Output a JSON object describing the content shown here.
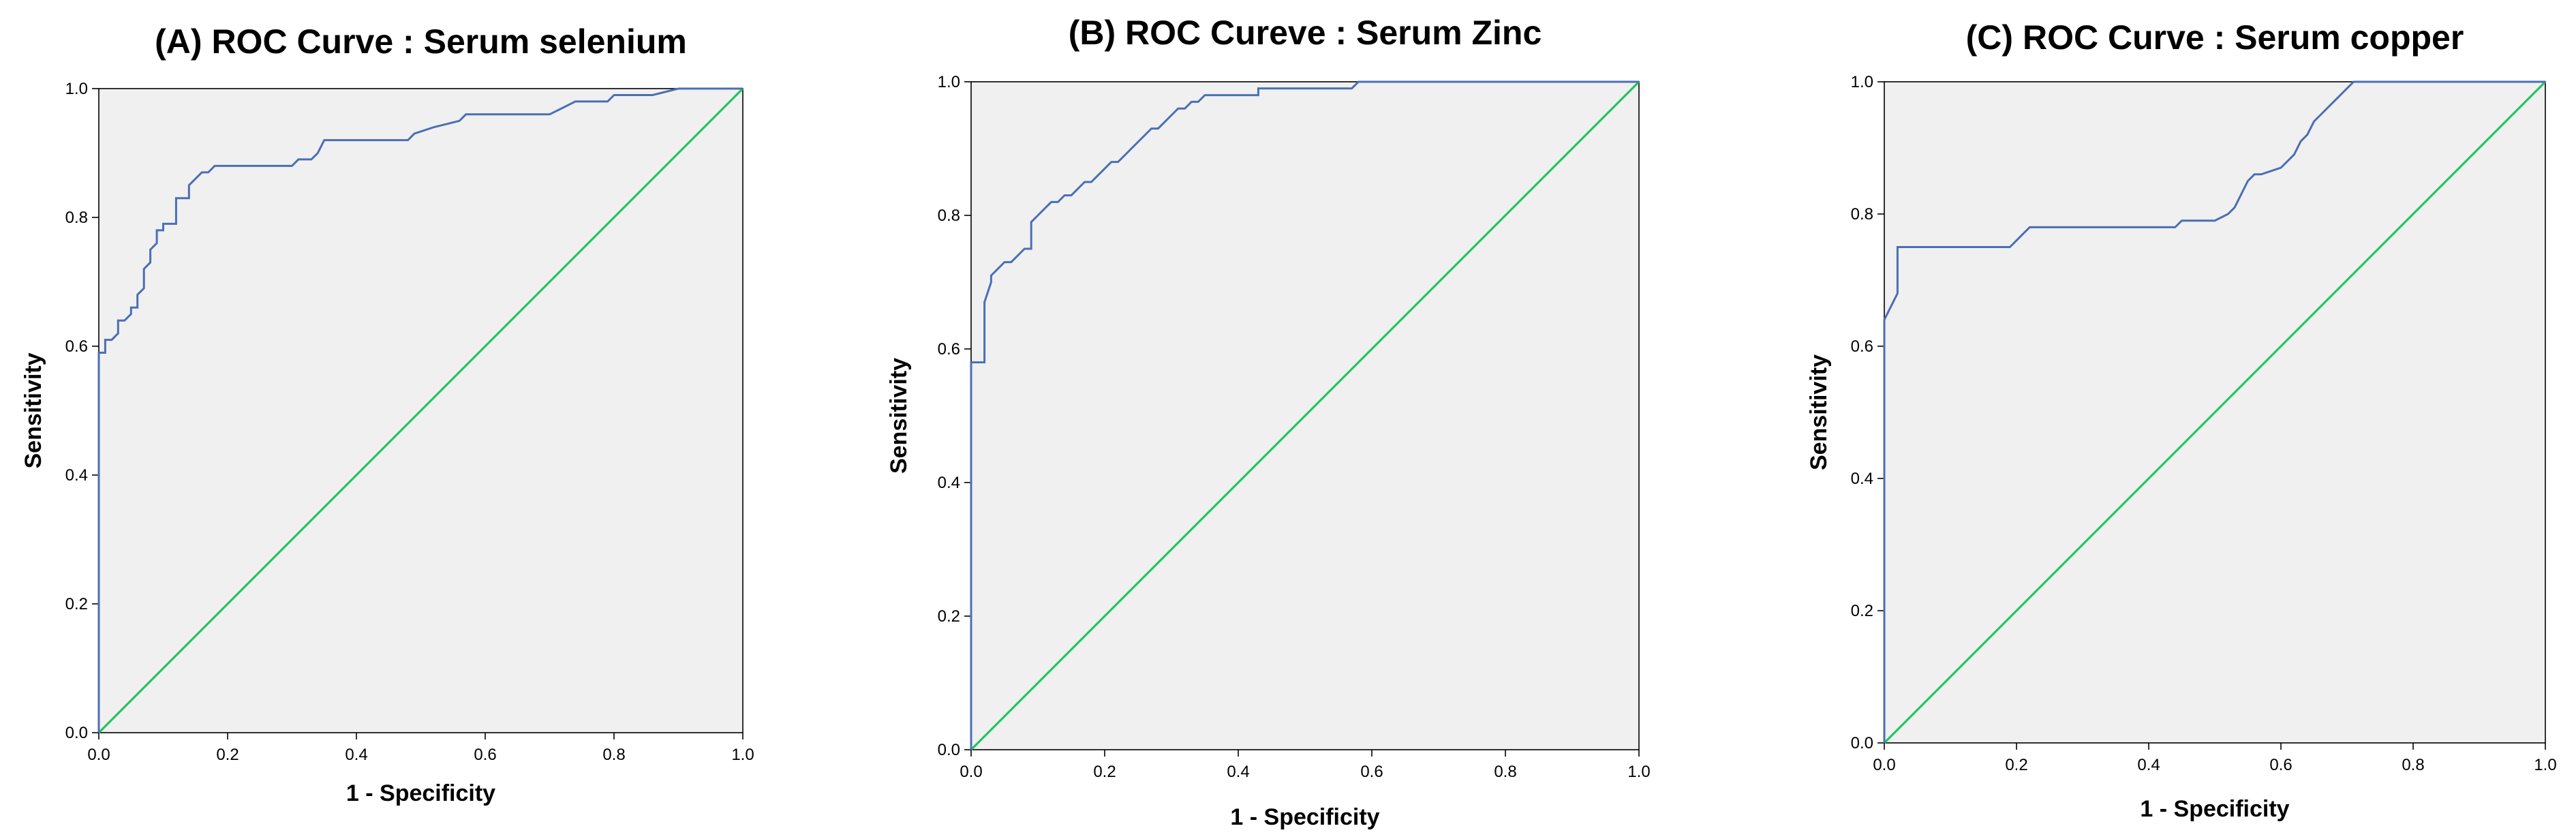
{
  "chart_data": [
    {
      "type": "line",
      "title": "(A) ROC Curve : Serum selenium",
      "xlabel": "1 - Specificity",
      "ylabel": "Sensitivity",
      "xlim": [
        0,
        1
      ],
      "ylim": [
        0,
        1
      ],
      "xticks": [
        "0.0",
        "0.2",
        "0.4",
        "0.6",
        "0.8",
        "1.0"
      ],
      "yticks": [
        "0.0",
        "0.2",
        "0.4",
        "0.6",
        "0.8",
        "1.0"
      ],
      "grid": false,
      "series": [
        {
          "color": "#4a6fb5",
          "x": [
            0,
            0,
            0.01,
            0.01,
            0.02,
            0.03,
            0.03,
            0.04,
            0.05,
            0.05,
            0.06,
            0.06,
            0.07,
            0.07,
            0.08,
            0.08,
            0.09,
            0.09,
            0.1,
            0.1,
            0.12,
            0.12,
            0.14,
            0.14,
            0.15,
            0.16,
            0.17,
            0.18,
            0.3,
            0.31,
            0.33,
            0.34,
            0.35,
            0.48,
            0.49,
            0.52,
            0.56,
            0.57,
            0.7,
            0.72,
            0.74,
            0.79,
            0.8,
            0.86,
            0.9,
            1.0
          ],
          "y": [
            0,
            0.59,
            0.59,
            0.61,
            0.61,
            0.62,
            0.64,
            0.64,
            0.65,
            0.66,
            0.66,
            0.68,
            0.69,
            0.72,
            0.73,
            0.75,
            0.76,
            0.78,
            0.78,
            0.79,
            0.79,
            0.83,
            0.83,
            0.85,
            0.86,
            0.87,
            0.87,
            0.88,
            0.88,
            0.89,
            0.89,
            0.9,
            0.92,
            0.92,
            0.93,
            0.94,
            0.95,
            0.96,
            0.96,
            0.97,
            0.98,
            0.98,
            0.99,
            0.99,
            1.0,
            1.0
          ]
        },
        {
          "color": "#22c55e",
          "x": [
            0,
            1
          ],
          "y": [
            0,
            1
          ]
        }
      ]
    },
    {
      "type": "line",
      "title": "(B) ROC Cureve : Serum Zinc",
      "xlabel": "1 - Specificity",
      "ylabel": "Sensitivity",
      "xlim": [
        0,
        1
      ],
      "ylim": [
        0,
        1
      ],
      "xticks": [
        "0.0",
        "0.2",
        "0.4",
        "0.6",
        "0.8",
        "1.0"
      ],
      "yticks": [
        "0.0",
        "0.2",
        "0.4",
        "0.6",
        "0.8",
        "1.0"
      ],
      "grid": false,
      "series": [
        {
          "color": "#4a6fb5",
          "x": [
            0,
            0,
            0.02,
            0.02,
            0.03,
            0.03,
            0.04,
            0.05,
            0.06,
            0.07,
            0.08,
            0.09,
            0.09,
            0.1,
            0.11,
            0.12,
            0.13,
            0.14,
            0.15,
            0.16,
            0.17,
            0.18,
            0.19,
            0.2,
            0.21,
            0.22,
            0.23,
            0.24,
            0.25,
            0.26,
            0.27,
            0.28,
            0.29,
            0.3,
            0.31,
            0.32,
            0.33,
            0.34,
            0.35,
            0.37,
            0.39,
            0.43,
            0.43,
            0.5,
            0.57,
            0.58,
            0.6,
            1.0
          ],
          "y": [
            0,
            0.58,
            0.58,
            0.67,
            0.7,
            0.71,
            0.72,
            0.73,
            0.73,
            0.74,
            0.75,
            0.75,
            0.79,
            0.8,
            0.81,
            0.82,
            0.82,
            0.83,
            0.83,
            0.84,
            0.85,
            0.85,
            0.86,
            0.87,
            0.88,
            0.88,
            0.89,
            0.9,
            0.91,
            0.92,
            0.93,
            0.93,
            0.94,
            0.95,
            0.96,
            0.96,
            0.97,
            0.97,
            0.98,
            0.98,
            0.98,
            0.98,
            0.99,
            0.99,
            0.99,
            1.0,
            1.0,
            1.0
          ]
        },
        {
          "color": "#22c55e",
          "x": [
            0,
            1
          ],
          "y": [
            0,
            1
          ]
        }
      ]
    },
    {
      "type": "line",
      "title": "(C) ROC Curve : Serum copper",
      "xlabel": "1 - Specificity",
      "ylabel": "Sensitivity",
      "xlim": [
        0,
        1
      ],
      "ylim": [
        0,
        1
      ],
      "xticks": [
        "0.0",
        "0.2",
        "0.4",
        "0.6",
        "0.8",
        "1.0"
      ],
      "yticks": [
        "0.0",
        "0.2",
        "0.4",
        "0.6",
        "0.8",
        "1.0"
      ],
      "grid": false,
      "series": [
        {
          "color": "#4a6fb5",
          "x": [
            0,
            0,
            0.01,
            0.02,
            0.02,
            0.19,
            0.2,
            0.21,
            0.22,
            0.44,
            0.45,
            0.5,
            0.52,
            0.53,
            0.54,
            0.55,
            0.56,
            0.57,
            0.6,
            0.61,
            0.62,
            0.63,
            0.64,
            0.65,
            0.66,
            0.67,
            0.68,
            0.69,
            0.7,
            0.71,
            1.0
          ],
          "y": [
            0,
            0.64,
            0.66,
            0.68,
            0.75,
            0.75,
            0.76,
            0.77,
            0.78,
            0.78,
            0.79,
            0.79,
            0.8,
            0.81,
            0.83,
            0.85,
            0.86,
            0.86,
            0.87,
            0.88,
            0.89,
            0.91,
            0.92,
            0.94,
            0.95,
            0.96,
            0.97,
            0.98,
            0.99,
            1.0,
            1.0
          ]
        },
        {
          "color": "#22c55e",
          "x": [
            0,
            1
          ],
          "y": [
            0,
            1
          ]
        }
      ]
    }
  ]
}
